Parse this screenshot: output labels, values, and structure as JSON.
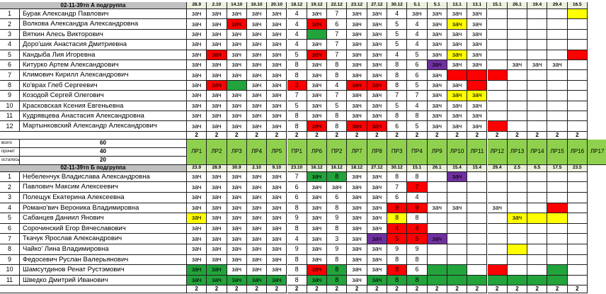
{
  "colors": {
    "Gr": "#22a33c",
    "R": "#ff0000",
    "Y": "#ffff00",
    "P": "#7030a0",
    "header": "#c0c0c0",
    "date": "#ebf1de",
    "lab": "#8fd14f"
  },
  "groupA": {
    "title": "02-11-39тп А подгруппа",
    "dates": [
      "28.9",
      "2.10",
      "14.10",
      "16.10",
      "20.10",
      "18.12",
      "19.12",
      "22.12",
      "23.12",
      "27.12",
      "30.12",
      "5.1",
      "5.1",
      "13.1",
      "13.1",
      "15.1",
      "26.1",
      "19.4",
      "29.4",
      "16.5"
    ],
    "students": [
      {
        "num": "1",
        "name": "Бурак Александр Павлович",
        "cells": [
          "зач",
          "зач",
          "зач",
          "зач",
          "зач",
          "4",
          "зач",
          "7",
          "зач",
          "зач",
          "4",
          "зач",
          "зач",
          "зач",
          "зач",
          "",
          "",
          "",
          "",
          "Y"
        ]
      },
      {
        "num": "2",
        "name": "Волкова Александра Александровна",
        "cells": [
          "зач",
          "зач",
          "R:зач",
          "зач",
          "зач",
          "4",
          "R:зач",
          "6",
          "зач",
          "зач",
          "5",
          "4",
          "зач",
          "Y:зач",
          "зач",
          "",
          "",
          "",
          "",
          ""
        ]
      },
      {
        "num": "3",
        "name": "Вяткин Алесь Викторович",
        "cells": [
          "зач",
          "зач",
          "зач",
          "зач",
          "зач",
          "4",
          "Gr:",
          "7",
          "зач",
          "зач",
          "5",
          "4",
          "зач",
          "зач",
          "зач",
          "",
          "",
          "",
          "",
          ""
        ]
      },
      {
        "num": "4",
        "name": "Доро'шик Анастасия Дмитриевна",
        "cells": [
          "зач",
          "зач",
          "зач",
          "зач",
          "зач",
          "4",
          "зач",
          "7",
          "зач",
          "зач",
          "5",
          "4",
          "зач",
          "зач",
          "зач",
          "",
          "",
          "",
          "",
          ""
        ]
      },
      {
        "num": "5",
        "name": "Кандыба Лия Игоревна",
        "cells": [
          "зач",
          "R:зач",
          "зач",
          "зач",
          "зач",
          "5",
          "R:зач",
          "7",
          "зач",
          "зач",
          "4",
          "5",
          "зач",
          "Y:зач",
          "зач",
          "",
          "",
          "",
          "",
          "R"
        ]
      },
      {
        "num": "6",
        "name": "Китурко Артем Александрович",
        "cells": [
          "зач",
          "зач",
          "зач",
          "зач",
          "зач",
          "8",
          "зач",
          "8",
          "зач",
          "зач",
          "8",
          "6",
          "P:зач",
          "зач",
          "зач",
          "",
          "зач",
          "зач",
          "зач",
          ""
        ]
      },
      {
        "num": "7",
        "name": "Климович Кирилл Александрович",
        "cells": [
          "зач",
          "зач",
          "зач",
          "зач",
          "зач",
          "8",
          "зач",
          "8",
          "зач",
          "зач",
          "8",
          "6",
          "зач",
          "R:",
          "R:",
          "R:",
          "",
          "",
          "",
          ""
        ]
      },
      {
        "num": "8",
        "name": "Ко'врах Глеб Сергеевич",
        "cells": [
          "зач",
          "R:зач",
          "Gr:",
          "зач",
          "зач",
          "R:3",
          "зач",
          "4",
          "R:зач",
          "R:зач",
          "8",
          "5",
          "зач",
          "зач",
          "R:",
          "",
          "",
          "",
          "",
          ""
        ]
      },
      {
        "num": "9",
        "name": "Козодой Сергей Олегович",
        "cells": [
          "зач",
          "зач",
          "зач",
          "зач",
          "зач",
          "7",
          "зач",
          "7",
          "зач",
          "зач",
          "7",
          "7",
          "зач",
          "Y:зач",
          "Y:зач",
          "",
          "",
          "",
          "",
          ""
        ]
      },
      {
        "num": "10",
        "name": "Красковская Ксения Евгеньевна",
        "cells": [
          "зач",
          "зач",
          "зач",
          "зач",
          "зач",
          "5",
          "зач",
          "5",
          "зач",
          "зач",
          "5",
          "4",
          "зач",
          "зач",
          "зач",
          "",
          "",
          "",
          "",
          ""
        ]
      },
      {
        "num": "11",
        "name": "Кудрявцева Анастасия Александровна",
        "cells": [
          "зач",
          "зач",
          "зач",
          "зач",
          "зач",
          "8",
          "зач",
          "8",
          "зач",
          "зач",
          "8",
          "8",
          "зач",
          "зач",
          "зач",
          "",
          "",
          "",
          "",
          ""
        ]
      },
      {
        "num": "12",
        "name": "Мартынковский Александр Александрович",
        "cells": [
          "зач",
          "зач",
          "зач",
          "зач",
          "зач",
          "8",
          "R:зач",
          "8",
          "R:зач",
          "R:зач",
          "6",
          "5",
          "зач",
          "зач",
          "зач",
          "R:",
          "",
          "",
          "",
          ""
        ]
      }
    ],
    "totals": [
      "2",
      "2",
      "2",
      "2",
      "2",
      "2",
      "2",
      "2",
      "2",
      "2",
      "2",
      "2",
      "2",
      "2",
      "2",
      "2",
      "2",
      "2",
      "2",
      "2"
    ]
  },
  "summary": {
    "rows": [
      {
        "label": "всего",
        "value": "60"
      },
      {
        "label": "прочит",
        "value": "40"
      },
      {
        "label": "осталось",
        "value": "20"
      }
    ],
    "labs": [
      "ЛР1",
      "ЛР2",
      "ЛР3",
      "ЛР4",
      "ЛР5",
      "ПР1",
      "ЛР6",
      "ПР2",
      "ЛР7",
      "ЛР8",
      "ПР3",
      "ПР4",
      "ЛР9",
      "ЛР10",
      "ЛР11",
      "ЛР12",
      "ЛР13",
      "ЛР14",
      "ЛР15",
      "ЛР16",
      "ЛР17"
    ]
  },
  "groupB": {
    "title": "02-11-39тп Б подгруппа",
    "dates": [
      "23.9",
      "28.9",
      "30.9",
      "2.10",
      "9.10",
      "23.10",
      "16.12",
      "16.12",
      "18.12",
      "27.12",
      "30.12",
      "15.1",
      "26.1",
      "15.4",
      "15.4",
      "29.4",
      "2.5",
      "6.5",
      "17.5",
      "23.5"
    ],
    "students": [
      {
        "num": "1",
        "name": "Небеленчук Владислава Александровна",
        "cells": [
          "зач",
          "зач",
          "зач",
          "зач",
          "зач",
          "7",
          "Gr:зач",
          "Gr:8",
          "зач",
          "зач",
          "8",
          "8",
          "",
          "P:зач",
          "",
          "",
          "",
          "",
          "",
          ""
        ]
      },
      {
        "num": "2",
        "name": "Павлович Максим Алексеевич",
        "cells": [
          "зач",
          "зач",
          "зач",
          "зач",
          "зач",
          "6",
          "зач",
          "зач",
          "зач",
          "зач",
          "7",
          "R:7",
          "",
          "",
          "",
          "",
          "",
          "",
          "",
          ""
        ]
      },
      {
        "num": "3",
        "name": "Полещук Екатерина Алексеевна",
        "cells": [
          "зач",
          "зач",
          "зач",
          "зач",
          "зач",
          "6",
          "зач",
          "6",
          "зач",
          "зач",
          "6",
          "4",
          "",
          "",
          "",
          "",
          "",
          "",
          "",
          ""
        ]
      },
      {
        "num": "4",
        "name": "Романо'вич Вероника Владимировна",
        "cells": [
          "зач",
          "зач",
          "зач",
          "зач",
          "зач",
          "8",
          "зач",
          "8",
          "зач",
          "зач",
          "R:9",
          "R:9",
          "зач",
          "зач",
          "",
          "зач",
          "",
          "",
          "R:",
          ""
        ]
      },
      {
        "num": "5",
        "name": "Сабанцев Даниил Янович",
        "cells": [
          "Y:зач",
          "зач",
          "зач",
          "зач",
          "зач",
          "9",
          "зач",
          "9",
          "зач",
          "зач",
          "Y:8",
          "8",
          "",
          "",
          "",
          "",
          "Y:зач",
          "Y:",
          "Y:",
          ""
        ]
      },
      {
        "num": "6",
        "name": "Сорочинский Егор Вячеславович",
        "cells": [
          "зач",
          "зач",
          "зач",
          "зач",
          "зач",
          "8",
          "зач",
          "8",
          "зач",
          "зач",
          "R:4",
          "R:4",
          "",
          "",
          "",
          "",
          "",
          "",
          "",
          ""
        ]
      },
      {
        "num": "7",
        "name": "Ткачук Ярослав Александрович",
        "cells": [
          "зач",
          "зач",
          "зач",
          "зач",
          "зач",
          "4",
          "зач",
          "3",
          "зач",
          "P:зач",
          "R:5",
          "R:5",
          "P:зач",
          "",
          "",
          "",
          "",
          "",
          "",
          ""
        ]
      },
      {
        "num": "8",
        "name": "Чайко' Лина Владимировна",
        "cells": [
          "зач",
          "зач",
          "зач",
          "зач",
          "зач",
          "9",
          "зач",
          "9",
          "зач",
          "зач",
          "9",
          "9",
          "",
          "",
          "",
          "",
          "Y:",
          "",
          "",
          ""
        ]
      },
      {
        "num": "9",
        "name": "Федосевич Руслан Валерьянович",
        "cells": [
          "зач",
          "зач",
          "зач",
          "зач",
          "зач",
          "8",
          "зач",
          "8",
          "зач",
          "зач",
          "8",
          "8",
          "",
          "",
          "",
          "",
          "",
          "",
          "",
          ""
        ]
      },
      {
        "num": "10",
        "name": "Шамсутдинов Ренат Рустэмович",
        "cells": [
          "Gr:зач",
          "Gr:зач",
          "зач",
          "зач",
          "зач",
          "8",
          "R:зач",
          "Gr:8",
          "зач",
          "зач",
          "R:8",
          "6",
          "Gr:",
          "Gr:",
          "",
          "R:",
          "",
          "",
          "Gr:",
          ""
        ]
      },
      {
        "num": "11",
        "name": "Шведко Дмитрий Иванович",
        "cells": [
          "Gr:зач",
          "Gr:зач",
          "Gr:зач",
          "Gr:зач",
          "Gr:зач",
          "8",
          "Gr:зач",
          "Gr:8",
          "зач",
          "Gr:зач",
          "Gr:8",
          "Gr:8",
          "Gr:",
          "Gr:",
          "Gr:",
          "Gr:",
          "Gr:",
          "Gr:",
          "Gr:",
          ""
        ]
      }
    ],
    "totals": [
      "2",
      "2",
      "2",
      "2",
      "2",
      "2",
      "2",
      "2",
      "2",
      "2",
      "2",
      "2",
      "2",
      "2",
      "2",
      "2",
      "2",
      "2",
      "2",
      "2"
    ]
  }
}
